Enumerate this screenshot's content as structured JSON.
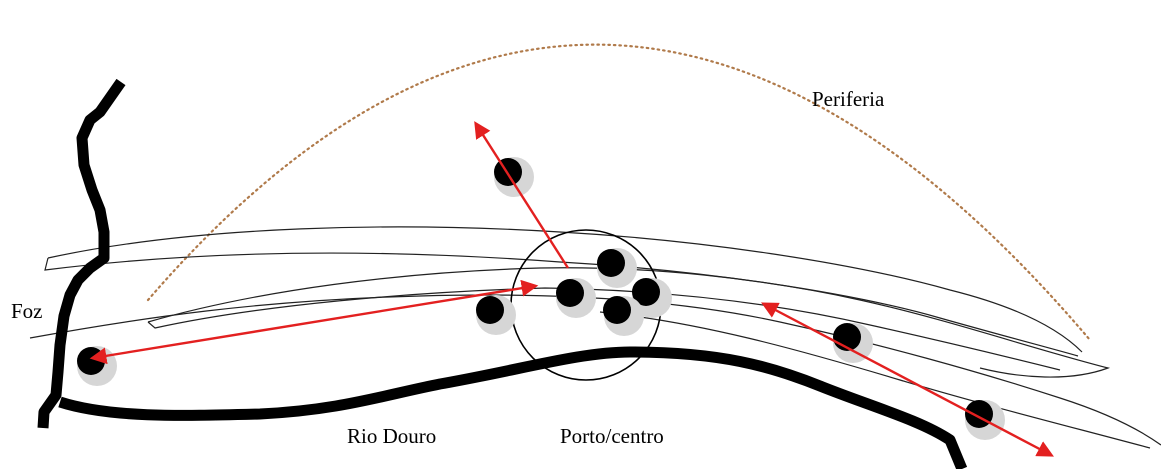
{
  "labels": {
    "periferia": "Periferia",
    "foz": "Foz",
    "rio_douro": "Rio Douro",
    "porto_centro": "Porto/centro"
  },
  "colors": {
    "coastline": "#000000",
    "river": "#000000",
    "streets": "#222222",
    "periphery_arc": "#b07a4a",
    "arrows": "#e32020",
    "node_fill": "#000000",
    "node_shadow": "#bdbdbd",
    "center_circle": "#000000"
  }
}
